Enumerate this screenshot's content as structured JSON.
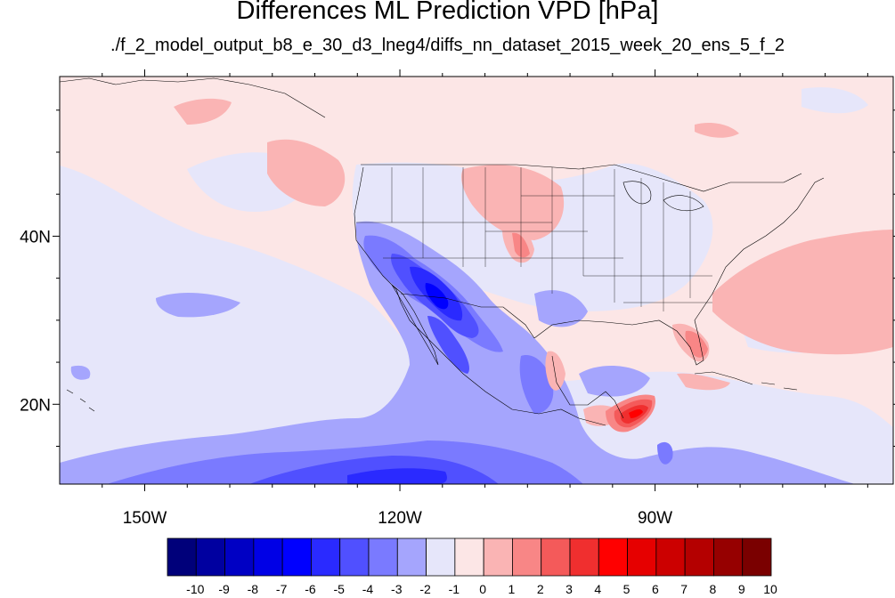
{
  "title": "Differences ML Prediction VPD [hPa]",
  "subtitle": "./f_2_model_output_b8_e_30_d3_lneg4/diffs_nn_dataset_2015_week_20_ens_5_f_2",
  "map": {
    "projection": "cylindrical-equidistant",
    "lon_range": [
      -160,
      -62
    ],
    "lat_range": [
      10.5,
      59
    ],
    "lat_tick_labels": [
      {
        "lat": 40,
        "text": "40N"
      },
      {
        "lat": 20,
        "text": "20N"
      }
    ],
    "lon_tick_labels": [
      {
        "lon": -150,
        "text": "150W"
      },
      {
        "lon": -120,
        "text": "120W"
      },
      {
        "lon": -90,
        "text": "90W"
      }
    ],
    "background_fill": "#fce6e6"
  },
  "colorbar": {
    "labels": [
      "-10",
      "-9",
      "-8",
      "-7",
      "-6",
      "-5",
      "-4",
      "-3",
      "-2",
      "-1",
      "0",
      "1",
      "2",
      "3",
      "4",
      "5",
      "6",
      "7",
      "8",
      "9",
      "10"
    ],
    "colors": [
      "#00007a",
      "#0000a0",
      "#0000c4",
      "#0000e6",
      "#0000ff",
      "#2a2aff",
      "#5050ff",
      "#7a7aff",
      "#a5a5fd",
      "#e6e6fa",
      "#fce6e6",
      "#fab4b4",
      "#f88686",
      "#f45a5a",
      "#f02f2f",
      "#ff0000",
      "#e60000",
      "#cc0000",
      "#b40000",
      "#960000",
      "#7a0000"
    ]
  }
}
